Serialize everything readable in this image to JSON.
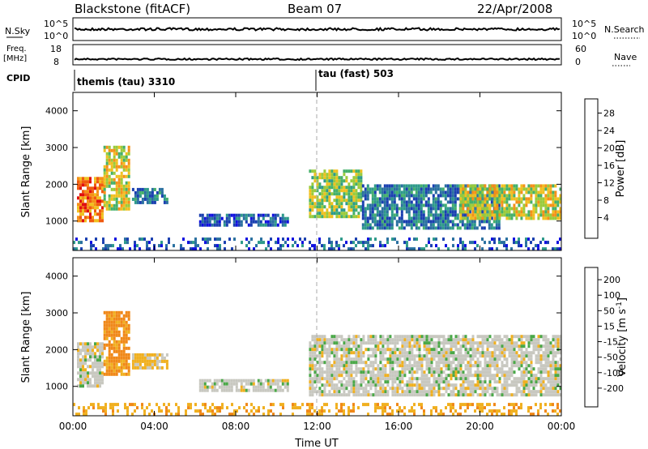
{
  "header": {
    "station": "Blackstone (fitACF)",
    "beam": "Beam 07",
    "date": "22/Apr/2008"
  },
  "top_panel": {
    "left_label": "N.Sky",
    "left_ticks": [
      "10^5",
      "10^0"
    ],
    "right_label": "N.Search",
    "right_ticks": [
      "10^5",
      "10^0"
    ]
  },
  "freq_panel": {
    "left_label_1": "Freq.",
    "left_label_2": "[MHz]",
    "left_ticks": [
      "18",
      "8"
    ],
    "right_label": "Nave",
    "right_ticks": [
      "60",
      "0"
    ]
  },
  "cpid": {
    "label": "CPID",
    "modes": [
      "themis (tau) 3310",
      "tau (fast) 503"
    ]
  },
  "colors": {
    "power_scale": [
      "#1010e0",
      "#1a3fb0",
      "#2a70a0",
      "#2e9a8a",
      "#45b06a",
      "#9acb3c",
      "#f0c020",
      "#f59018",
      "#f05a10",
      "#e01010"
    ],
    "velocity_scale": [
      "#1a3aa8",
      "#2a6ab0",
      "#2e8a60",
      "#4aa848",
      "#78c040",
      "#c8c8c0",
      "#f0b020",
      "#f08818",
      "#f05010",
      "#e01010"
    ],
    "ground_scatter_grey": "#c8c8c0"
  },
  "chart_data": [
    {
      "type": "heatmap",
      "name": "Power",
      "xlabel": "",
      "ylabel": "Slant Range [km]",
      "xlim": [
        "00:00",
        "00:00"
      ],
      "ylim": [
        200,
        4500
      ],
      "y_ticks": [
        "1000",
        "2000",
        "3000",
        "4000"
      ],
      "colorbar_label": "Power [dB]",
      "colorbar_ticks": [
        "4",
        "8",
        "12",
        "16",
        "20",
        "24",
        "28"
      ],
      "colorbar_range": [
        0,
        30
      ],
      "regions": [
        {
          "t_start": 0.2,
          "t_end": 1.5,
          "r_low": 1050,
          "r_high": 2200,
          "power": 24
        },
        {
          "t_start": 1.5,
          "t_end": 2.8,
          "r_low": 1300,
          "r_high": 3050,
          "power": 18
        },
        {
          "t_start": 2.9,
          "t_end": 4.6,
          "r_low": 1500,
          "r_high": 1900,
          "power": 8
        },
        {
          "t_start": 6.2,
          "t_end": 10.5,
          "r_low": 900,
          "r_high": 1200,
          "power": 6
        },
        {
          "t_start": 11.6,
          "t_end": 14.2,
          "r_low": 1150,
          "r_high": 2400,
          "power": 16
        },
        {
          "t_start": 14.2,
          "t_end": 21.0,
          "r_low": 800,
          "r_high": 2000,
          "power": 8
        },
        {
          "t_start": 19.0,
          "t_end": 24.0,
          "r_low": 1050,
          "r_high": 2000,
          "power": 18
        },
        {
          "t_start": 0.0,
          "t_end": 24.0,
          "r_low": 200,
          "r_high": 550,
          "power": 6
        }
      ]
    },
    {
      "type": "heatmap",
      "name": "Velocity",
      "xlabel": "Time UT",
      "ylabel": "Slant Range [km]",
      "x_ticks": [
        "00:00",
        "04:00",
        "08:00",
        "12:00",
        "16:00",
        "20:00",
        "00:00"
      ],
      "ylim": [
        200,
        4500
      ],
      "y_ticks": [
        "1000",
        "2000",
        "3000",
        "4000"
      ],
      "colorbar_label": "Velocity [m s^-1]",
      "colorbar_ticks": [
        "200",
        "100",
        "50",
        "15",
        "-15",
        "-50",
        "-100",
        "-200"
      ],
      "colorbar_range": [
        -250,
        250
      ],
      "regions": [
        {
          "t_start": 0.2,
          "t_end": 1.5,
          "r_low": 1050,
          "r_high": 2200,
          "velocity": 0
        },
        {
          "t_start": 1.5,
          "t_end": 2.8,
          "r_low": 1300,
          "r_high": 3050,
          "velocity": -60
        },
        {
          "t_start": 2.9,
          "t_end": 4.6,
          "r_low": 1500,
          "r_high": 1900,
          "velocity": -20
        },
        {
          "t_start": 6.2,
          "t_end": 10.5,
          "r_low": 900,
          "r_high": 1200,
          "velocity": 0
        },
        {
          "t_start": 11.6,
          "t_end": 24.0,
          "r_low": 800,
          "r_high": 2400,
          "velocity": 0
        },
        {
          "t_start": 0.0,
          "t_end": 24.0,
          "r_low": 200,
          "r_high": 550,
          "velocity": -40
        }
      ]
    }
  ]
}
